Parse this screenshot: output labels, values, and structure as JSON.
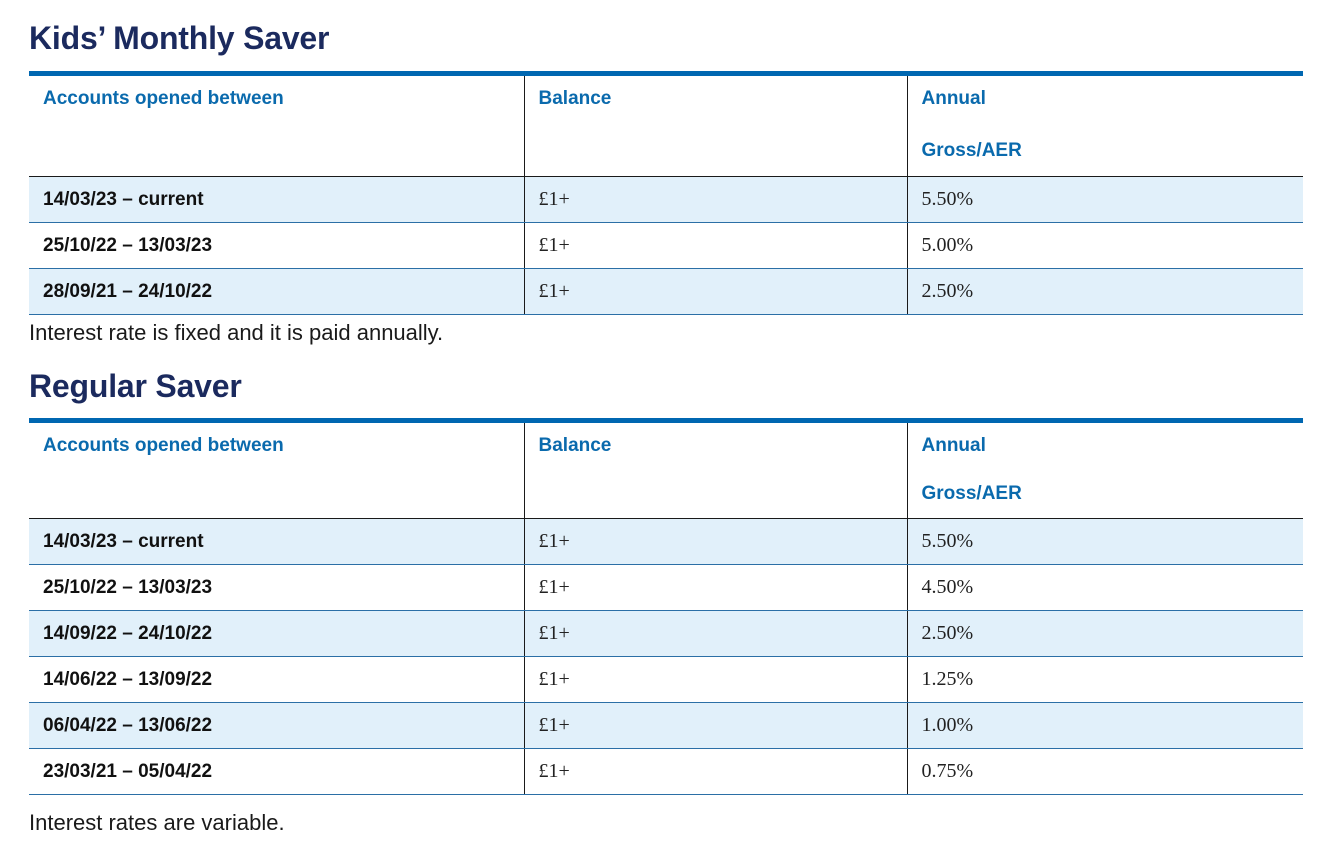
{
  "sections": [
    {
      "title": "Kids’ Monthly Saver",
      "headers": {
        "col1": "Accounts opened between",
        "col2": "Balance",
        "col3_line1": "Annual",
        "col3_line2": "Gross/AER"
      },
      "rows": [
        {
          "dates": "14/03/23 – current",
          "balance": "£1+",
          "rate": "5.50%"
        },
        {
          "dates": "25/10/22 – 13/03/23",
          "balance": "£1+",
          "rate": "5.00%"
        },
        {
          "dates": "28/09/21 – 24/10/22",
          "balance": "£1+",
          "rate": "2.50%"
        }
      ],
      "note": "Interest rate is fixed and it is paid annually."
    },
    {
      "title": "Regular Saver",
      "headers": {
        "col1": "Accounts opened between",
        "col2": "Balance",
        "col3_line1": "Annual",
        "col3_line2": "Gross/AER"
      },
      "rows": [
        {
          "dates": "14/03/23 – current",
          "balance": "£1+",
          "rate": "5.50%"
        },
        {
          "dates": "25/10/22 – 13/03/23",
          "balance": "£1+",
          "rate": "4.50%"
        },
        {
          "dates": "14/09/22 – 24/10/22",
          "balance": "£1+",
          "rate": "2.50%"
        },
        {
          "dates": "14/06/22 – 13/09/22",
          "balance": "£1+",
          "rate": "1.25%"
        },
        {
          "dates": "06/04/22 – 13/06/22",
          "balance": "£1+",
          "rate": "1.00%"
        },
        {
          "dates": "23/03/21 – 05/04/22",
          "balance": "£1+",
          "rate": "0.75%"
        }
      ],
      "note": "Interest rates are variable."
    }
  ],
  "colors": {
    "title": "#1b2a5e",
    "header_text": "#0a6aad",
    "table_top_rule": "#0067b1",
    "row_shade": "#e1f0fa"
  }
}
